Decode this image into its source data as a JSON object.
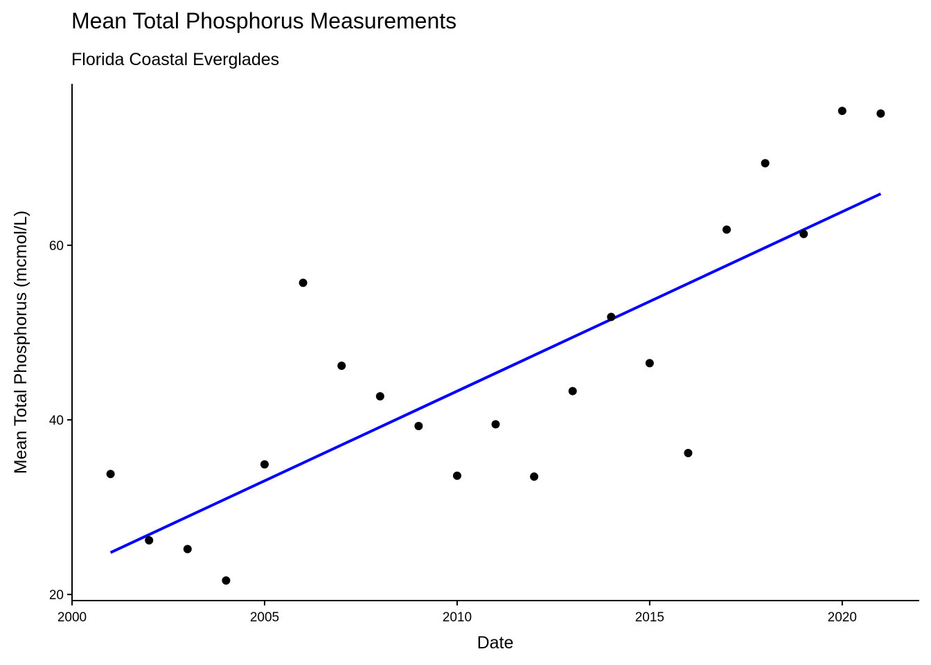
{
  "chart_data": {
    "type": "scatter",
    "title": "Mean Total Phosphorus Measurements",
    "subtitle": "Florida Coastal Everglades",
    "xlabel": "Date",
    "ylabel": "Mean Total Phosphorus (mcmol/L)",
    "xlim": [
      2000,
      2022
    ],
    "ylim": [
      19.3,
      78.5
    ],
    "xticks": [
      2000,
      2005,
      2010,
      2015,
      2020
    ],
    "yticks": [
      20,
      40,
      60
    ],
    "grid": false,
    "legend": "none",
    "point_color": "#000000",
    "series": [
      {
        "x": [
          2001,
          2002,
          2003,
          2004,
          2005,
          2006,
          2007,
          2008,
          2009,
          2010,
          2011,
          2012,
          2013,
          2014,
          2015,
          2016,
          2017,
          2018,
          2019,
          2020,
          2021
        ],
        "y": [
          33.8,
          26.2,
          25.2,
          21.6,
          34.9,
          55.7,
          46.2,
          42.7,
          39.3,
          33.6,
          39.5,
          33.5,
          43.3,
          51.8,
          46.5,
          36.2,
          61.8,
          69.4,
          61.3,
          75.4,
          75.1
        ]
      }
    ],
    "trendline": {
      "color": "#0000ff",
      "x": [
        2001,
        2021
      ],
      "y": [
        24.8,
        65.9
      ]
    }
  }
}
